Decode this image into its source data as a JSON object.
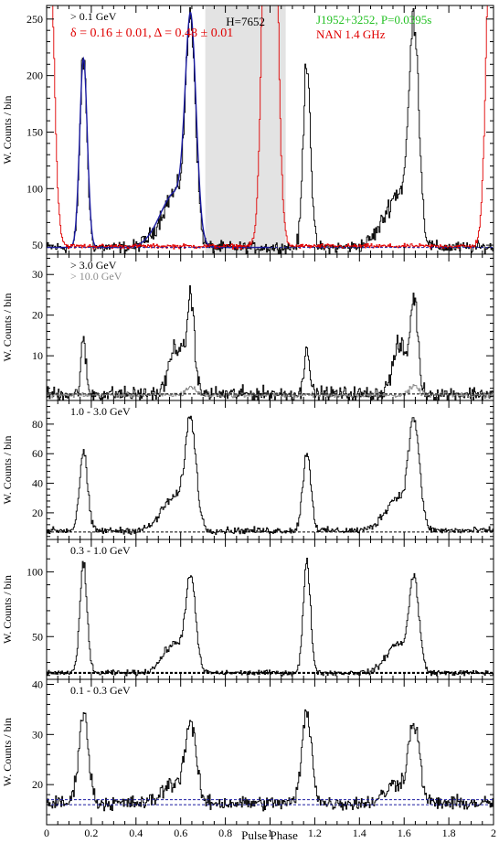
{
  "figure": {
    "xlabel": "Pulse Phase",
    "x_ticks": [
      "0",
      "0.2",
      "0.4",
      "0.6",
      "0.8",
      "1",
      "1.2",
      "1.4",
      "1.6",
      "1.8",
      "2"
    ]
  },
  "colors": {
    "black": "#000000",
    "blue": "#1a1aa0",
    "red": "#e00000",
    "green": "#22c022",
    "gray": "#8c8c8c",
    "shade": "#e3e3e3"
  },
  "chart_data": [
    {
      "type": "line",
      "ylabel": "W. Counts / bin",
      "band_label": "> 0.1 GeV",
      "annotations": {
        "fit": "δ = 0.16 ± 0.01, Δ = 0.48 ± 0.01",
        "htest": "H=7652",
        "pulsar": "J1952+3252, P=0.0395s",
        "radio": "NAN 1.4 GHz"
      },
      "xlim": [
        0,
        2
      ],
      "ylim": [
        42,
        262
      ],
      "y_ticks": [
        50,
        100,
        150,
        200,
        250
      ],
      "shaded_phase": [
        0.71,
        1.07
      ],
      "baselines": [
        48
      ],
      "series": [
        {
          "name": "> 0.1 GeV",
          "color": "black",
          "background": 48,
          "peaks": [
            {
              "x": 0.165,
              "amp": 167,
              "w": 0.016
            },
            {
              "x": 0.645,
              "amp": 185,
              "w": 0.022
            },
            {
              "x": 0.58,
              "amp": 45,
              "w": 0.05
            },
            {
              "x": 0.5,
              "amp": 10,
              "w": 0.05
            }
          ],
          "noise": 5
        },
        {
          "name": "fit",
          "color": "blue",
          "x_range": [
            0,
            1
          ],
          "background": 48,
          "peaks": [
            {
              "x": 0.165,
              "amp": 167,
              "w": 0.017
            },
            {
              "x": 0.645,
              "amp": 185,
              "w": 0.024
            },
            {
              "x": 0.58,
              "amp": 45,
              "w": 0.055
            },
            {
              "x": 0.5,
              "amp": 10,
              "w": 0.05
            }
          ],
          "noise": 0
        },
        {
          "name": "NAN 1.4 GHz",
          "color": "red",
          "background": 49,
          "peaks": [
            {
              "x": 0.0,
              "amp": 205,
              "w": 0.025
            },
            {
              "x": 1.0,
              "amp": 205,
              "w": 0.025
            },
            {
              "x": 2.0,
              "amp": 205,
              "w": 0.025
            }
          ],
          "noise": 2
        }
      ]
    },
    {
      "type": "line",
      "ylabel": "W. Counts / bin",
      "band_label": "> 3.0 GeV",
      "band_label_2": "> 10.0 GeV",
      "xlim": [
        0,
        2
      ],
      "ylim": [
        -1,
        35
      ],
      "y_ticks": [
        10,
        20,
        30
      ],
      "baselines": [
        0.6
      ],
      "series": [
        {
          "name": "> 3.0 GeV",
          "color": "black",
          "background": 0.6,
          "peaks": [
            {
              "x": 0.165,
              "amp": 13,
              "w": 0.011
            },
            {
              "x": 0.645,
              "amp": 23,
              "w": 0.017
            },
            {
              "x": 0.58,
              "amp": 12,
              "w": 0.03
            }
          ],
          "noise": 1.8
        },
        {
          "name": "> 10.0 GeV",
          "color": "gray",
          "background": 0.4,
          "peaks": [
            {
              "x": 0.645,
              "amp": 2,
              "w": 0.02
            }
          ],
          "noise": 0.6
        }
      ]
    },
    {
      "type": "line",
      "ylabel": "W. Counts / bin",
      "band_label": "1.0 - 3.0 GeV",
      "xlim": [
        0,
        2
      ],
      "ylim": [
        2,
        96
      ],
      "y_ticks": [
        20,
        40,
        60,
        80
      ],
      "baselines": [
        7
      ],
      "series": [
        {
          "name": "1.0 - 3.0 GeV",
          "color": "black",
          "background": 8,
          "peaks": [
            {
              "x": 0.165,
              "amp": 53,
              "w": 0.018
            },
            {
              "x": 0.645,
              "amp": 68,
              "w": 0.024
            },
            {
              "x": 0.57,
              "amp": 22,
              "w": 0.055
            }
          ],
          "noise": 2.2
        }
      ]
    },
    {
      "type": "line",
      "ylabel": "W. Counts / bin",
      "band_label": "0.3 - 1.0 GeV",
      "xlim": [
        0,
        2
      ],
      "ylim": [
        17,
        125
      ],
      "y_ticks": [
        50,
        100
      ],
      "baselines": [
        22
      ],
      "series": [
        {
          "name": "0.3 - 1.0 GeV",
          "color": "black",
          "background": 22,
          "peaks": [
            {
              "x": 0.165,
              "amp": 85,
              "w": 0.016
            },
            {
              "x": 0.645,
              "amp": 68,
              "w": 0.022
            },
            {
              "x": 0.57,
              "amp": 22,
              "w": 0.05
            }
          ],
          "noise": 2
        }
      ]
    },
    {
      "type": "line",
      "ylabel": "W. Counts / bin",
      "band_label": "0.1 - 0.3 GeV",
      "xlim": [
        0,
        2
      ],
      "ylim": [
        12,
        41
      ],
      "y_ticks": [
        20,
        30,
        40
      ],
      "baselines": [
        16,
        17
      ],
      "series": [
        {
          "name": "0.1 - 0.3 GeV",
          "color": "black",
          "background": 16.3,
          "peaks": [
            {
              "x": 0.165,
              "amp": 18,
              "w": 0.022
            },
            {
              "x": 0.645,
              "amp": 15,
              "w": 0.024
            },
            {
              "x": 0.57,
              "amp": 4,
              "w": 0.05
            }
          ],
          "noise": 1.4
        }
      ]
    }
  ]
}
